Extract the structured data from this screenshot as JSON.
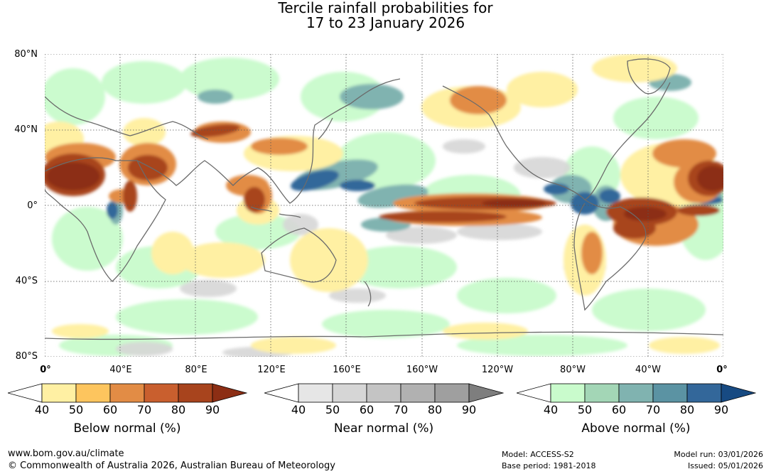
{
  "title": {
    "line1": "Tercile rainfall probabilities for",
    "line2": "17 to 23 January 2026"
  },
  "map": {
    "lat_labels": [
      "80°N",
      "40°N",
      "0°",
      "40°S",
      "80°S"
    ],
    "lon_labels": [
      "0°",
      "40°E",
      "80°E",
      "120°E",
      "160°E",
      "160°W",
      "120°W",
      "80°W",
      "40°W",
      "0°"
    ],
    "colors": {
      "ocean": "#ffffff",
      "coast": "#6b6b6b",
      "grid": "#555555"
    }
  },
  "legends": [
    {
      "title": "Below normal (%)",
      "ticks": [
        "40",
        "50",
        "60",
        "70",
        "80",
        "90"
      ],
      "colors": [
        "#ffffff",
        "#fff0a3",
        "#fdc55e",
        "#e28c45",
        "#c95f2e",
        "#a8441d",
        "#8c2e14"
      ]
    },
    {
      "title": "Near normal (%)",
      "ticks": [
        "40",
        "50",
        "60",
        "70",
        "80",
        "90"
      ],
      "colors": [
        "#ffffff",
        "#e6e6e6",
        "#d6d6d6",
        "#c4c4c4",
        "#b1b1b1",
        "#9f9f9f",
        "#7e7e7e"
      ]
    },
    {
      "title": "Above normal (%)",
      "ticks": [
        "40",
        "50",
        "60",
        "70",
        "80",
        "90"
      ],
      "colors": [
        "#ffffff",
        "#c9fbcc",
        "#a3d6b6",
        "#80b3b0",
        "#5b93a3",
        "#33679a",
        "#174a82"
      ]
    }
  ],
  "footer": {
    "website": "www.bom.gov.au/climate",
    "copyright": "© Commonwealth of Australia 2026, Australian Bureau of Meteorology",
    "model": "Model: ACCESS-S2",
    "base_period": "Base period: 1981-2018",
    "model_run": "Model run: 03/01/2026",
    "issued": "Issued: 05/01/2026"
  }
}
